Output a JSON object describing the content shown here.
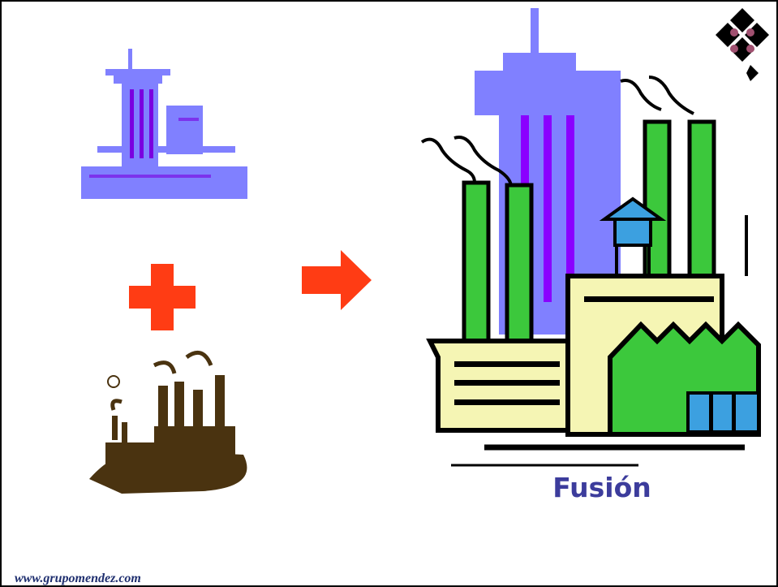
{
  "caption": "Fusión",
  "footer": "www.grupomendez.com"
}
